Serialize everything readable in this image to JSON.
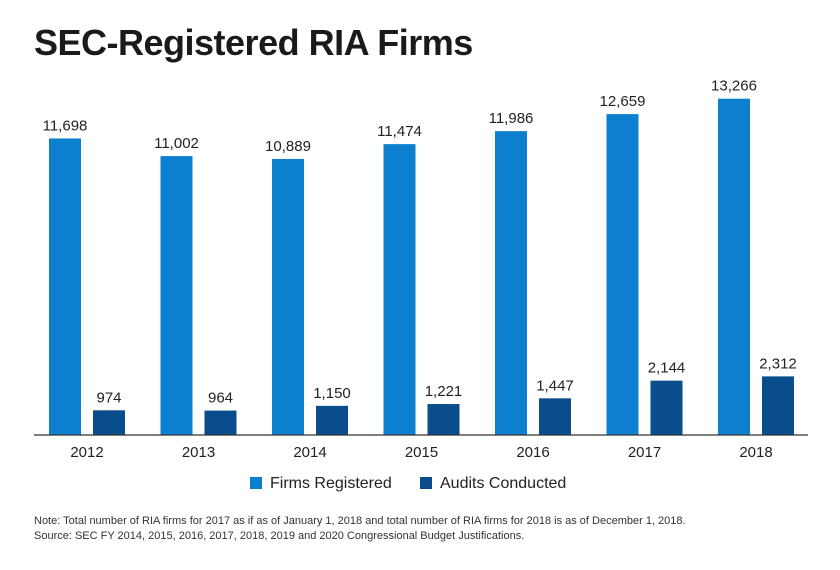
{
  "title": "SEC-Registered RIA Firms",
  "notes": {
    "line1": "Note: Total number of RIA firms for 2017 as if as of January 1, 2018 and total number of RIA firms for 2018 is as of December 1, 2018.",
    "line2": "Source: SEC FY 2014, 2015, 2016, 2017, 2018, 2019 and 2020 Congressional Budget Justifications."
  },
  "colors": {
    "firms": "#0d7fcf",
    "audits": "#0a4d8c"
  },
  "chart_data": {
    "type": "bar",
    "title": "SEC-Registered RIA Firms",
    "categories": [
      "2012",
      "2013",
      "2014",
      "2015",
      "2016",
      "2017",
      "2018"
    ],
    "series": [
      {
        "name": "Firms Registered",
        "values": [
          11698,
          11002,
          10889,
          11474,
          11986,
          12659,
          13266
        ],
        "labels": [
          "11,698",
          "11,002",
          "10,889",
          "11,474",
          "11,986",
          "12,659",
          "13,266"
        ]
      },
      {
        "name": "Audits Conducted",
        "values": [
          974,
          964,
          1150,
          1221,
          1447,
          2144,
          2312
        ],
        "labels": [
          "974",
          "964",
          "1,150",
          "1,221",
          "1,447",
          "2,144",
          "2,312"
        ]
      }
    ],
    "ylim": [
      0,
      14000
    ],
    "grid": false,
    "legend": "bottom"
  }
}
